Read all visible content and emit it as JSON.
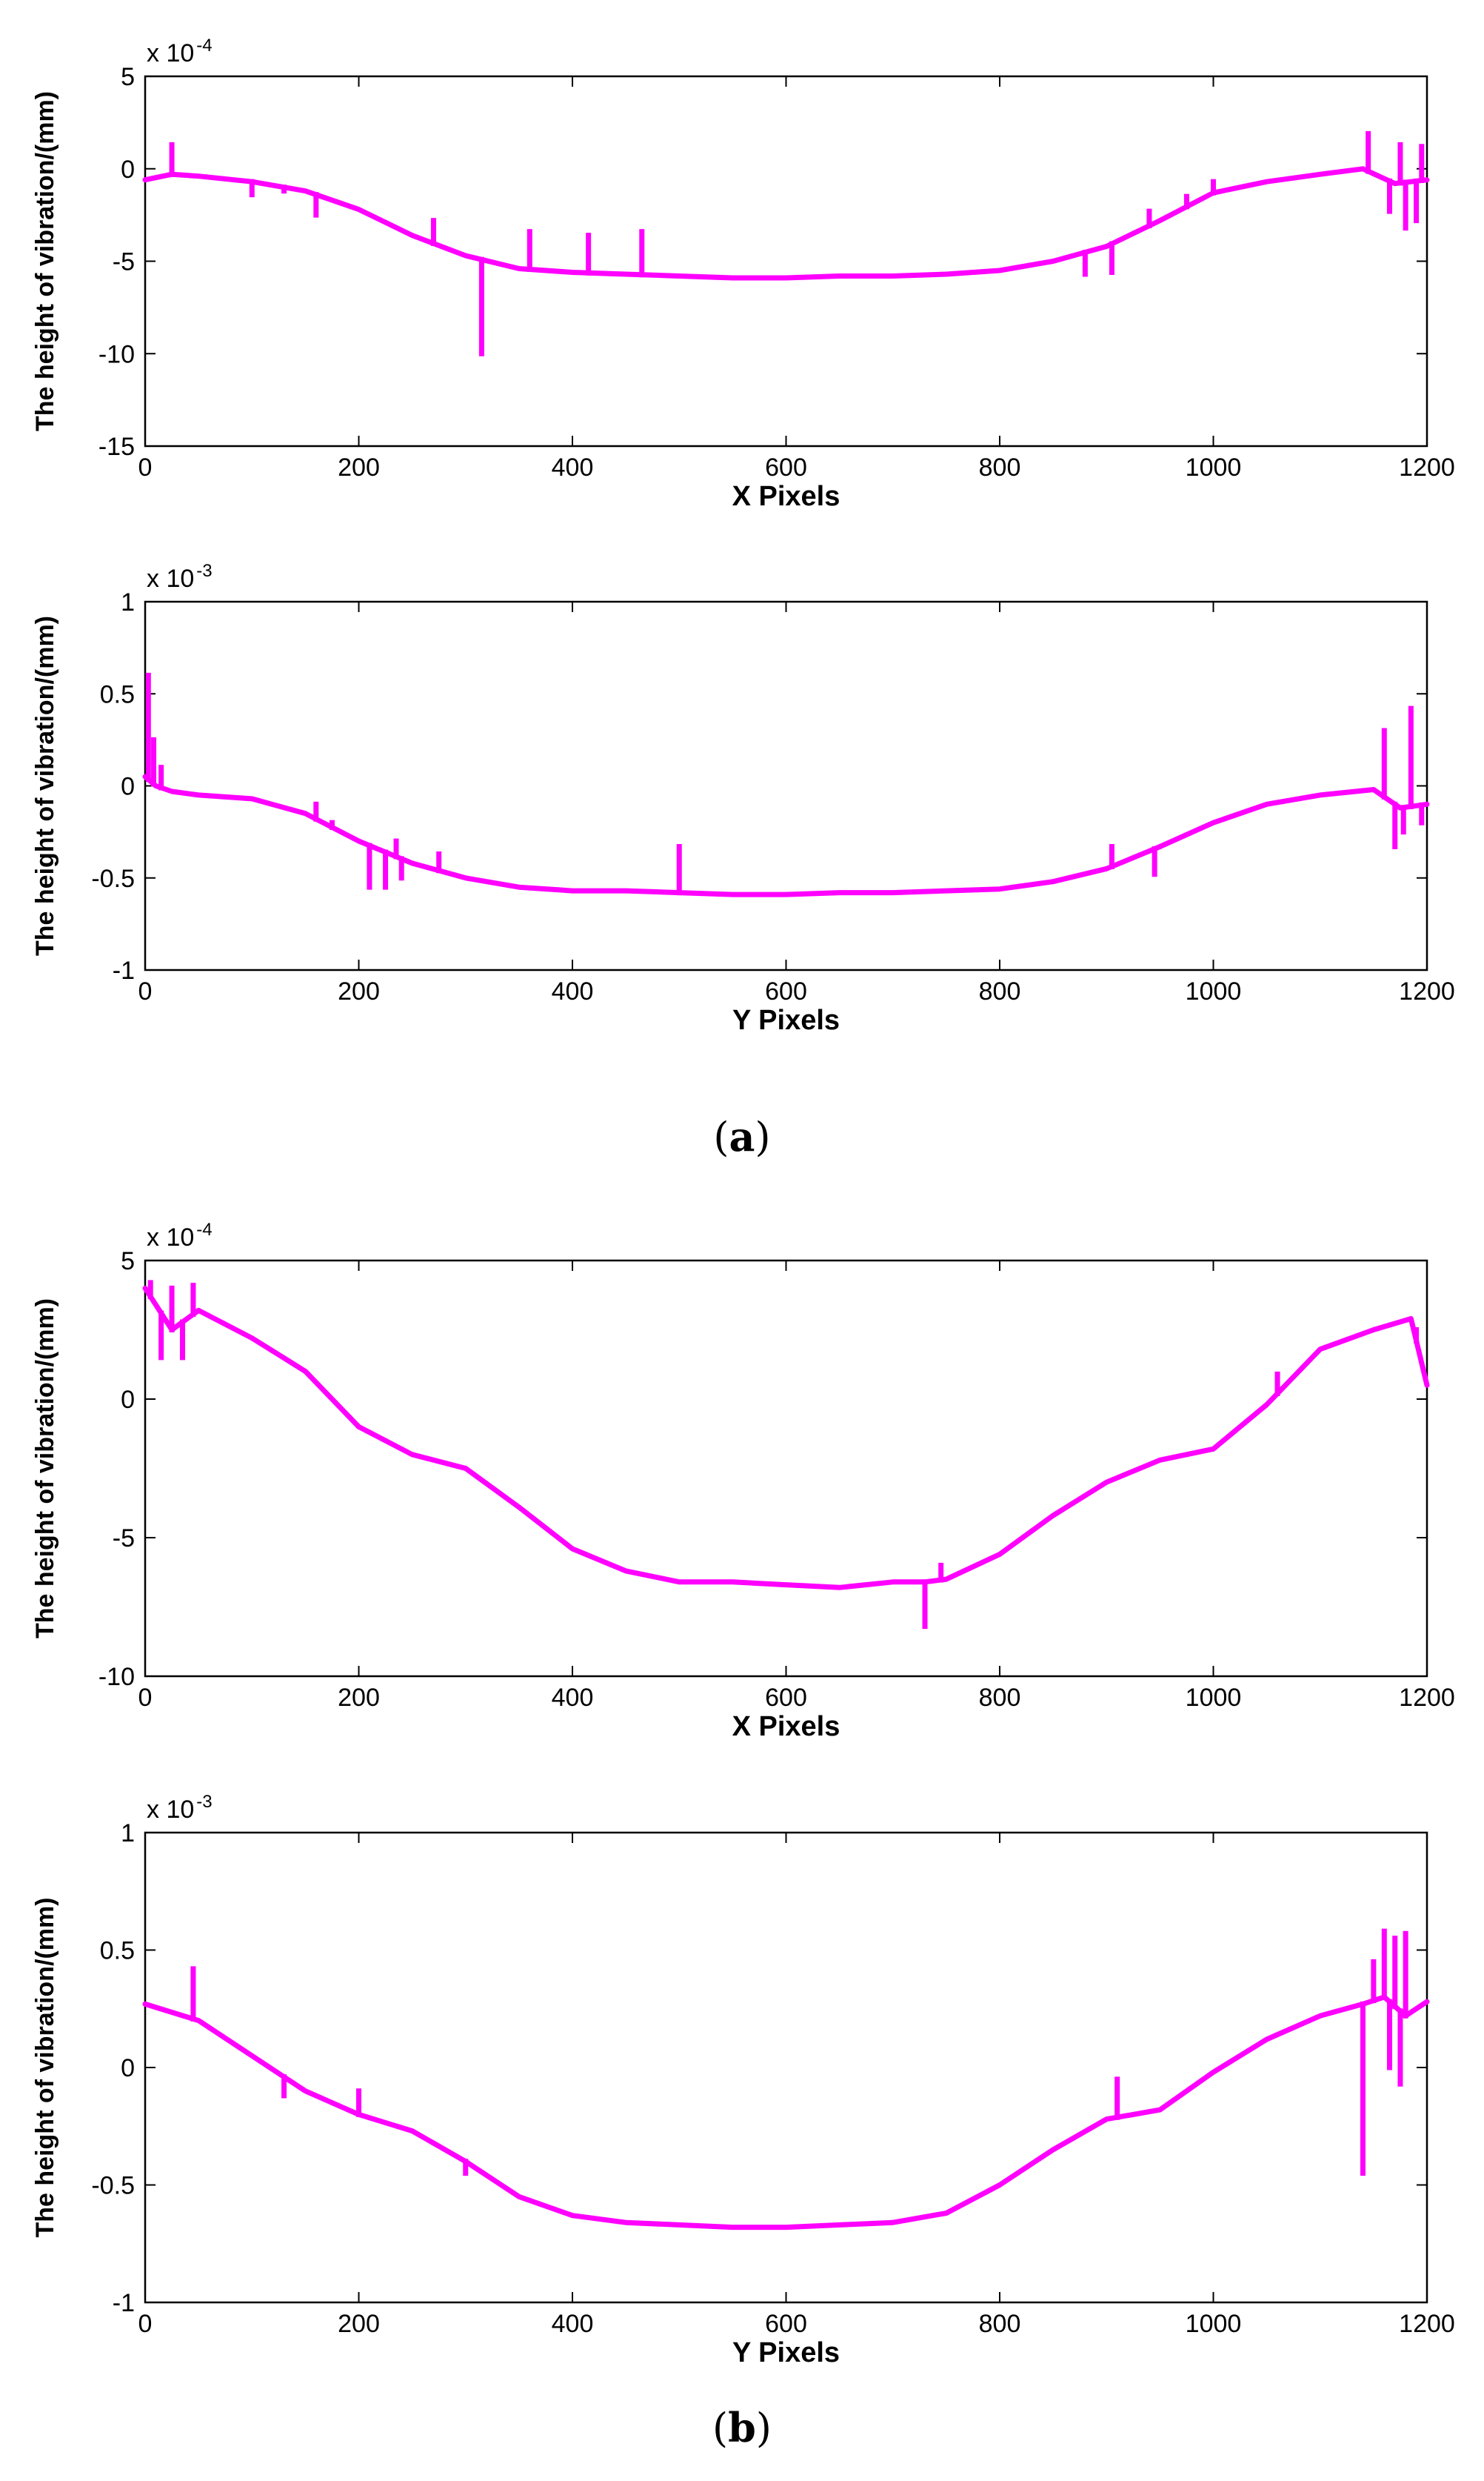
{
  "panels": [
    {
      "open": "(",
      "letter": "a",
      "close": ")"
    },
    {
      "open": "(",
      "letter": "b",
      "close": ")"
    }
  ],
  "line_color": "#ff00ff",
  "chart_data": [
    {
      "id": "a-x",
      "type": "line",
      "title": "",
      "xlabel": "X Pixels",
      "ylabel": "The height of vibration/(mm)",
      "exponent_base": "x 10",
      "exponent_power": "-4",
      "xlim": [
        0,
        1200
      ],
      "ylim": [
        -15,
        5
      ],
      "xticks": [
        0,
        200,
        400,
        600,
        800,
        1000,
        1200
      ],
      "yticks": [
        -15,
        -10,
        -5,
        0,
        5
      ],
      "ytick_labels": [
        "-15",
        "-10",
        "-5",
        "0",
        "5"
      ],
      "series": [
        {
          "name": "vibration",
          "x": [
            0,
            25,
            50,
            100,
            150,
            200,
            250,
            300,
            350,
            400,
            450,
            500,
            550,
            600,
            650,
            700,
            750,
            800,
            850,
            900,
            950,
            1000,
            1050,
            1100,
            1140,
            1170,
            1200
          ],
          "y": [
            -0.6,
            -0.3,
            -0.4,
            -0.7,
            -1.2,
            -2.2,
            -3.6,
            -4.7,
            -5.4,
            -5.6,
            -5.7,
            -5.8,
            -5.9,
            -5.9,
            -5.8,
            -5.8,
            -5.7,
            -5.5,
            -5.0,
            -4.2,
            -2.8,
            -1.3,
            -0.7,
            -0.3,
            0.0,
            -0.8,
            -0.6
          ]
        }
      ],
      "spikes": [
        [
          25,
          1.3
        ],
        [
          100,
          -1.4
        ],
        [
          130,
          -1.2
        ],
        [
          160,
          -2.5
        ],
        [
          270,
          -2.8
        ],
        [
          315,
          -10.0
        ],
        [
          360,
          -3.4
        ],
        [
          415,
          -3.6
        ],
        [
          465,
          -3.4
        ],
        [
          880,
          -5.7
        ],
        [
          905,
          -5.6
        ],
        [
          940,
          -2.3
        ],
        [
          975,
          -1.5
        ],
        [
          1000,
          -0.7
        ],
        [
          1145,
          1.9
        ],
        [
          1165,
          -2.3
        ],
        [
          1175,
          1.3
        ],
        [
          1180,
          -3.2
        ],
        [
          1190,
          -2.8
        ],
        [
          1195,
          1.2
        ]
      ]
    },
    {
      "id": "a-y",
      "type": "line",
      "title": "",
      "xlabel": "Y Pixels",
      "ylabel": "The height of vibration/(mm)",
      "exponent_base": "x 10",
      "exponent_power": "-3",
      "xlim": [
        0,
        1200
      ],
      "ylim": [
        -1,
        1
      ],
      "xticks": [
        0,
        200,
        400,
        600,
        800,
        1000,
        1200
      ],
      "yticks": [
        -1,
        -0.5,
        0,
        0.5,
        1
      ],
      "ytick_labels": [
        "-1",
        "-0.5",
        "0",
        "0.5",
        "1"
      ],
      "series": [
        {
          "name": "vibration",
          "x": [
            0,
            10,
            25,
            50,
            100,
            150,
            200,
            250,
            300,
            350,
            400,
            450,
            500,
            550,
            600,
            650,
            700,
            750,
            800,
            850,
            900,
            950,
            1000,
            1050,
            1100,
            1150,
            1175,
            1200
          ],
          "y": [
            0.05,
            0.0,
            -0.03,
            -0.05,
            -0.07,
            -0.15,
            -0.3,
            -0.42,
            -0.5,
            -0.55,
            -0.57,
            -0.57,
            -0.58,
            -0.59,
            -0.59,
            -0.58,
            -0.58,
            -0.57,
            -0.56,
            -0.52,
            -0.45,
            -0.33,
            -0.2,
            -0.1,
            -0.05,
            -0.02,
            -0.12,
            -0.1
          ]
        }
      ],
      "spikes": [
        [
          3,
          0.6
        ],
        [
          8,
          0.25
        ],
        [
          15,
          0.1
        ],
        [
          160,
          -0.1
        ],
        [
          175,
          -0.2
        ],
        [
          210,
          -0.55
        ],
        [
          225,
          -0.55
        ],
        [
          235,
          -0.3
        ],
        [
          240,
          -0.5
        ],
        [
          275,
          -0.37
        ],
        [
          500,
          -0.33
        ],
        [
          905,
          -0.33
        ],
        [
          945,
          -0.48
        ],
        [
          1160,
          0.3
        ],
        [
          1170,
          -0.33
        ],
        [
          1178,
          -0.25
        ],
        [
          1185,
          0.42
        ],
        [
          1195,
          -0.2
        ]
      ]
    },
    {
      "id": "b-x",
      "type": "line",
      "title": "",
      "xlabel": "X Pixels",
      "ylabel": "The height of vibration/(mm)",
      "exponent_base": "x 10",
      "exponent_power": "-4",
      "xlim": [
        0,
        1200
      ],
      "ylim": [
        -10,
        5
      ],
      "xticks": [
        0,
        200,
        400,
        600,
        800,
        1000,
        1200
      ],
      "yticks": [
        -10,
        -5,
        0,
        5
      ],
      "ytick_labels": [
        "-10",
        "-5",
        "0",
        "5"
      ],
      "series": [
        {
          "name": "vibration",
          "x": [
            0,
            25,
            50,
            100,
            150,
            200,
            250,
            300,
            350,
            400,
            450,
            500,
            550,
            600,
            650,
            700,
            730,
            750,
            800,
            850,
            900,
            950,
            1000,
            1050,
            1100,
            1150,
            1185,
            1200
          ],
          "y": [
            4.0,
            2.5,
            3.2,
            2.2,
            1.0,
            -1.0,
            -2.0,
            -2.5,
            -3.9,
            -5.4,
            -6.2,
            -6.6,
            -6.6,
            -6.7,
            -6.8,
            -6.6,
            -6.6,
            -6.5,
            -5.6,
            -4.2,
            -3.0,
            -2.2,
            -1.8,
            -0.2,
            1.8,
            2.5,
            2.9,
            0.5
          ]
        }
      ],
      "spikes": [
        [
          5,
          4.2
        ],
        [
          15,
          1.5
        ],
        [
          25,
          4.0
        ],
        [
          35,
          1.5
        ],
        [
          45,
          4.1
        ],
        [
          730,
          -8.2
        ],
        [
          745,
          -6.0
        ],
        [
          1060,
          0.9
        ],
        [
          1190,
          2.5
        ]
      ]
    },
    {
      "id": "b-y",
      "type": "line",
      "title": "",
      "xlabel": "Y Pixels",
      "ylabel": "The height of vibration/(mm)",
      "exponent_base": "x 10",
      "exponent_power": "-3",
      "xlim": [
        0,
        1200
      ],
      "ylim": [
        -1,
        1
      ],
      "xticks": [
        0,
        200,
        400,
        600,
        800,
        1000,
        1200
      ],
      "yticks": [
        -1,
        -0.5,
        0,
        0.5,
        1
      ],
      "ytick_labels": [
        "-1",
        "-0.5",
        "0",
        "0.5",
        "1"
      ],
      "series": [
        {
          "name": "vibration",
          "x": [
            0,
            50,
            100,
            150,
            200,
            250,
            300,
            350,
            400,
            450,
            500,
            550,
            600,
            650,
            700,
            750,
            800,
            850,
            900,
            950,
            1000,
            1050,
            1100,
            1140,
            1160,
            1180,
            1200
          ],
          "y": [
            0.27,
            0.2,
            0.05,
            -0.1,
            -0.2,
            -0.27,
            -0.4,
            -0.55,
            -0.63,
            -0.66,
            -0.67,
            -0.68,
            -0.68,
            -0.67,
            -0.66,
            -0.62,
            -0.5,
            -0.35,
            -0.22,
            -0.18,
            -0.02,
            0.12,
            0.22,
            0.27,
            0.3,
            0.22,
            0.28
          ]
        }
      ],
      "spikes": [
        [
          45,
          0.42
        ],
        [
          130,
          -0.12
        ],
        [
          200,
          -0.1
        ],
        [
          300,
          -0.45
        ],
        [
          910,
          -0.05
        ],
        [
          1140,
          -0.45
        ],
        [
          1150,
          0.45
        ],
        [
          1160,
          0.58
        ],
        [
          1165,
          0.0
        ],
        [
          1170,
          0.55
        ],
        [
          1175,
          -0.07
        ],
        [
          1180,
          0.57
        ]
      ]
    }
  ]
}
